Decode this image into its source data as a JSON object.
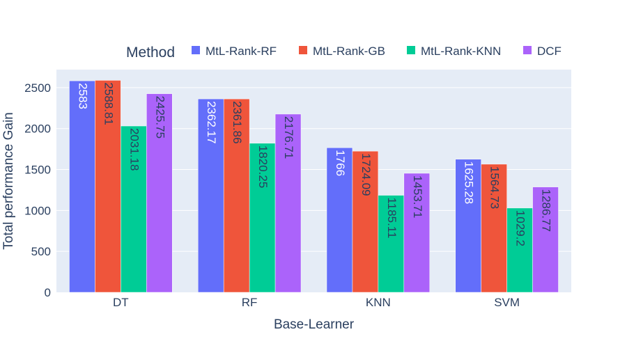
{
  "chart_data": {
    "type": "bar",
    "title": "",
    "xlabel": "Base-Learner",
    "ylabel": "Total performance Gain",
    "legend_title": "Method",
    "legend_placement": "top",
    "grid": true,
    "ylim": [
      0,
      2720
    ],
    "yticks": [
      0,
      500,
      1000,
      1500,
      2000,
      2500
    ],
    "ytick_labels": [
      "0",
      "500",
      "1000",
      "1500",
      "2000",
      "2500"
    ],
    "categories": [
      "DT",
      "RF",
      "KNN",
      "SVM"
    ],
    "series": [
      {
        "name": "MtL-Rank-RF",
        "color": "#636efa",
        "values": [
          2583,
          2362.17,
          1766,
          1625.28
        ],
        "labels": [
          "2583",
          "2362.17",
          "1766",
          "1625.28"
        ]
      },
      {
        "name": "MtL-Rank-GB",
        "color": "#ef553b",
        "values": [
          2588.81,
          2361.86,
          1724.09,
          1564.73
        ],
        "labels": [
          "2588.81",
          "2361.86",
          "1724.09",
          "1564.73"
        ]
      },
      {
        "name": "MtL-Rank-KNN",
        "color": "#00cc96",
        "values": [
          2031.18,
          1820.25,
          1185.11,
          1029.2
        ],
        "labels": [
          "2031.18",
          "1820.25",
          "1185.11",
          "1029.2"
        ]
      },
      {
        "name": "DCF",
        "color": "#ab63fa",
        "values": [
          2425.75,
          2176.71,
          1453.71,
          1286.77
        ],
        "labels": [
          "2425.75",
          "2176.71",
          "1453.71",
          "1286.77"
        ]
      }
    ],
    "plot_background": "#e5ecf6",
    "grid_color": "#ffffff"
  }
}
